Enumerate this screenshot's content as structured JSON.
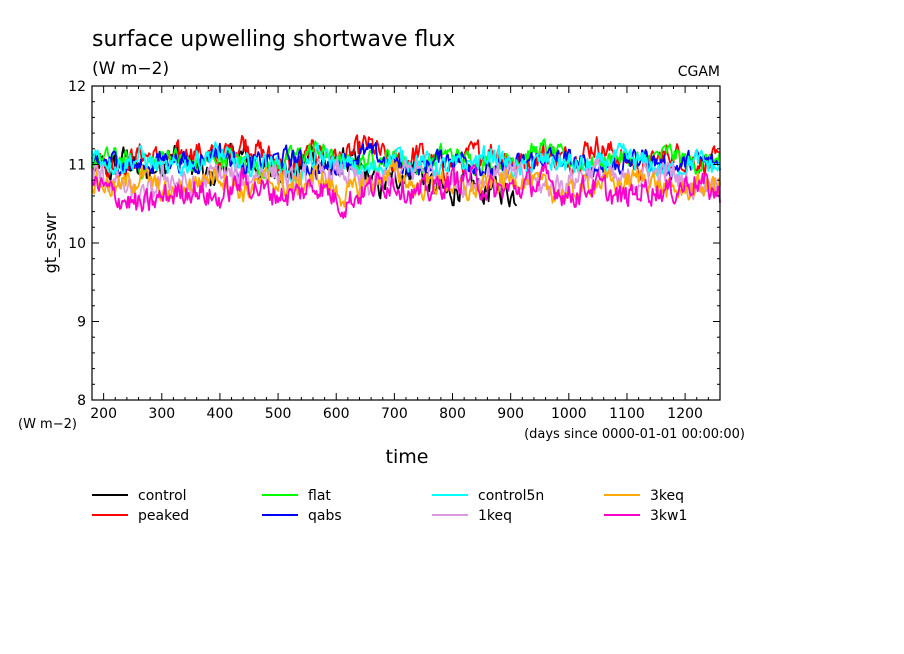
{
  "header": {
    "title": "surface upwelling shortwave flux",
    "units": "(W m−2)",
    "model": "CGAM"
  },
  "chart_data": {
    "type": "line",
    "title": "surface upwelling shortwave flux",
    "units": "(W m−2)",
    "xlabel": "time",
    "x_units": "(days since 0000-01-01 00:00:00)",
    "ylabel": "gt_sswr",
    "y_units": "(W m−2)",
    "xlim": [
      180,
      1260
    ],
    "ylim": [
      8,
      12
    ],
    "x_ticks": [
      200,
      300,
      400,
      500,
      600,
      700,
      800,
      900,
      1000,
      1100,
      1200
    ],
    "y_ticks": [
      8,
      9,
      10,
      11,
      12
    ],
    "grid": false,
    "legend_position": "bottom",
    "series": [
      {
        "name": "control",
        "color": "#000000",
        "x_range": [
          180,
          910
        ],
        "mean": 10.95,
        "amplitude": 0.18,
        "values": [
          11.05,
          10.9,
          11.1,
          10.85,
          11.0,
          11.15,
          10.95,
          10.8,
          11.05,
          11.1,
          10.9,
          11.0,
          10.85,
          11.15,
          10.95,
          11.05,
          10.9,
          10.7,
          10.85,
          11.0,
          10.75,
          10.6,
          10.8,
          10.65,
          10.7,
          10.6
        ]
      },
      {
        "name": "peaked",
        "color": "#ff0000",
        "x_range": [
          180,
          1260
        ],
        "mean": 11.05,
        "amplitude": 0.17,
        "values": [
          11.1,
          10.95,
          11.15,
          11.0,
          11.2,
          11.05,
          11.3,
          11.1,
          10.95,
          11.2,
          11.05,
          11.25,
          11.0,
          11.15,
          10.95,
          11.1,
          11.2,
          11.0,
          11.15,
          11.05,
          11.25,
          11.1,
          10.95,
          11.15,
          11.05,
          11.0
        ]
      },
      {
        "name": "flat",
        "color": "#00ff00",
        "x_range": [
          180,
          1260
        ],
        "mean": 11.05,
        "amplitude": 0.13,
        "values": [
          11.05,
          11.1,
          10.95,
          11.15,
          11.0,
          11.1,
          11.05,
          10.95,
          11.1,
          11.2,
          11.0,
          11.05,
          11.1,
          10.95,
          11.15,
          11.05,
          11.0,
          11.1,
          11.2,
          11.05,
          11.0,
          11.1,
          11.05,
          11.15,
          11.0,
          11.05
        ]
      },
      {
        "name": "qabs",
        "color": "#0000ff",
        "x_range": [
          180,
          1260
        ],
        "mean": 11.0,
        "amplitude": 0.14,
        "values": [
          11.0,
          11.05,
          10.95,
          11.1,
          11.0,
          11.2,
          10.95,
          11.05,
          11.1,
          10.9,
          11.05,
          11.15,
          11.0,
          10.95,
          11.1,
          11.05,
          10.9,
          11.0,
          11.1,
          11.05,
          10.95,
          11.0,
          11.1,
          10.95,
          11.05,
          11.0
        ]
      },
      {
        "name": "control5n",
        "color": "#00ffff",
        "x_range": [
          180,
          1260
        ],
        "mean": 11.0,
        "amplitude": 0.15,
        "values": [
          11.15,
          11.0,
          11.1,
          10.9,
          11.05,
          11.15,
          10.95,
          11.05,
          10.85,
          11.1,
          11.0,
          10.9,
          11.1,
          11.05,
          10.95,
          11.0,
          11.15,
          10.9,
          11.05,
          11.0,
          10.95,
          11.1,
          11.0,
          10.9,
          11.05,
          10.95
        ]
      },
      {
        "name": "1keq",
        "color": "#dd99dd",
        "x_range": [
          180,
          1260
        ],
        "mean": 10.85,
        "amplitude": 0.17,
        "values": [
          10.9,
          10.75,
          10.55,
          10.85,
          10.7,
          10.9,
          10.8,
          10.95,
          10.75,
          10.85,
          10.9,
          10.7,
          10.85,
          10.95,
          10.8,
          10.75,
          10.9,
          10.85,
          10.7,
          10.8,
          10.95,
          10.75,
          10.85,
          10.9,
          10.7,
          10.8
        ]
      },
      {
        "name": "3keq",
        "color": "#ffaa00",
        "x_range": [
          180,
          1260
        ],
        "mean": 10.75,
        "amplitude": 0.16,
        "values": [
          10.8,
          10.7,
          10.85,
          10.6,
          10.75,
          10.9,
          10.65,
          10.8,
          10.7,
          10.85,
          10.6,
          10.75,
          10.9,
          10.7,
          10.8,
          10.65,
          10.75,
          10.85,
          10.7,
          10.6,
          10.8,
          10.75,
          10.85,
          10.65,
          10.7,
          10.75
        ]
      },
      {
        "name": "3kw1",
        "color": "#ff00cc",
        "x_range": [
          180,
          1260
        ],
        "mean": 10.7,
        "amplitude": 0.18,
        "values": [
          10.75,
          10.6,
          10.45,
          10.6,
          10.7,
          10.55,
          10.8,
          10.65,
          10.6,
          10.75,
          10.5,
          10.7,
          10.8,
          10.6,
          10.75,
          10.85,
          10.65,
          10.7,
          10.8,
          10.6,
          10.75,
          10.55,
          10.7,
          10.65,
          10.8,
          10.6
        ]
      }
    ]
  }
}
